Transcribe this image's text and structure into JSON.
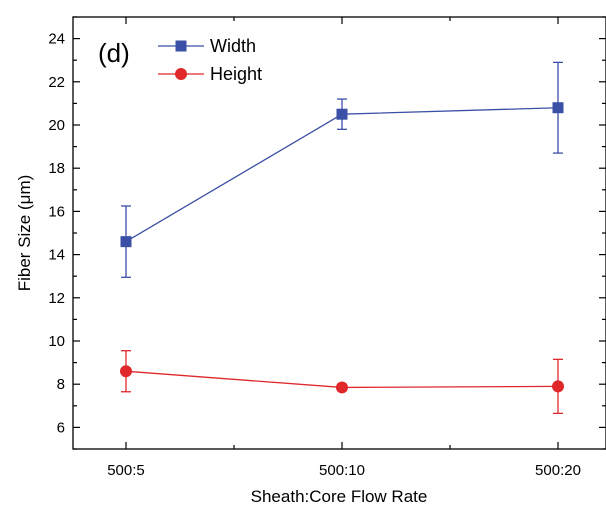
{
  "chart_data": {
    "type": "line",
    "panel_label": "(d)",
    "xlabel": "Sheath:Core Flow Rate",
    "ylabel": "Fiber Size (μm)",
    "categories": [
      "500:5",
      "500:10",
      "500:20"
    ],
    "ylim": [
      5,
      25
    ],
    "yticks": [
      6,
      8,
      10,
      12,
      14,
      16,
      18,
      20,
      22,
      24
    ],
    "legend_position": "top-left",
    "grid": false,
    "series": [
      {
        "name": "Width",
        "color": "#3a4fa6",
        "marker": "square",
        "values": [
          14.6,
          20.5,
          20.8
        ],
        "error": [
          [
            1.65,
            1.65
          ],
          [
            0.7,
            0.7
          ],
          [
            2.1,
            2.1
          ]
        ]
      },
      {
        "name": "Height",
        "color": "#e0282b",
        "marker": "circle",
        "values": [
          8.6,
          7.85,
          7.9
        ],
        "error": [
          [
            0.95,
            0.95
          ],
          [
            0.15,
            0.15
          ],
          [
            1.25,
            1.25
          ]
        ]
      }
    ]
  }
}
